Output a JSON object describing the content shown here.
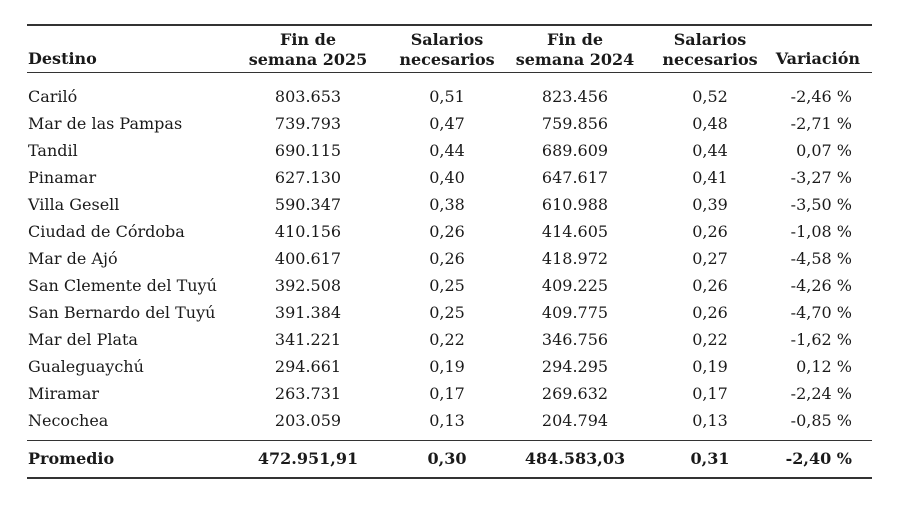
{
  "table": {
    "headers": [
      "Destino",
      "Fin de semana 2025",
      "Salarios necesarios",
      "Fin de semana 2024",
      "Salarios necesarios",
      "Variación"
    ],
    "header_lines": [
      [
        "Destino"
      ],
      [
        "Fin de",
        "semana 2025"
      ],
      [
        "Salarios",
        "necesarios"
      ],
      [
        "Fin de",
        "semana 2024"
      ],
      [
        "Salarios",
        "necesarios"
      ],
      [
        "Variación"
      ]
    ],
    "rows": [
      [
        "Cariló",
        "803.653",
        "0,51",
        "823.456",
        "0,52",
        "-2,46 %"
      ],
      [
        "Mar de las Pampas",
        "739.793",
        "0,47",
        "759.856",
        "0,48",
        "-2,71 %"
      ],
      [
        "Tandil",
        "690.115",
        "0,44",
        "689.609",
        "0,44",
        "0,07 %"
      ],
      [
        "Pinamar",
        "627.130",
        "0,40",
        "647.617",
        "0,41",
        "-3,27 %"
      ],
      [
        "Villa Gesell",
        "590.347",
        "0,38",
        "610.988",
        "0,39",
        "-3,50 %"
      ],
      [
        "Ciudad de Córdoba",
        "410.156",
        "0,26",
        "414.605",
        "0,26",
        "-1,08 %"
      ],
      [
        "Mar de Ajó",
        "400.617",
        "0,26",
        "418.972",
        "0,27",
        "-4,58 %"
      ],
      [
        "San Clemente del Tuyú",
        "392.508",
        "0,25",
        "409.225",
        "0,26",
        "-4,26 %"
      ],
      [
        "San Bernardo del Tuyú",
        "391.384",
        "0,25",
        "409.775",
        "0,26",
        "-4,70 %"
      ],
      [
        "Mar del Plata",
        "341.221",
        "0,22",
        "346.756",
        "0,22",
        "-1,62 %"
      ],
      [
        "Gualeguaychú",
        "294.661",
        "0,19",
        "294.295",
        "0,19",
        "0,12 %"
      ],
      [
        "Miramar",
        "263.731",
        "0,17",
        "269.632",
        "0,17",
        "-2,24 %"
      ],
      [
        "Necochea",
        "203.059",
        "0,13",
        "204.794",
        "0,13",
        "-0,85 %"
      ]
    ],
    "total": [
      "Promedio",
      "472.951,91",
      "0,30",
      "484.583,03",
      "0,31",
      "-2,40 %"
    ]
  }
}
